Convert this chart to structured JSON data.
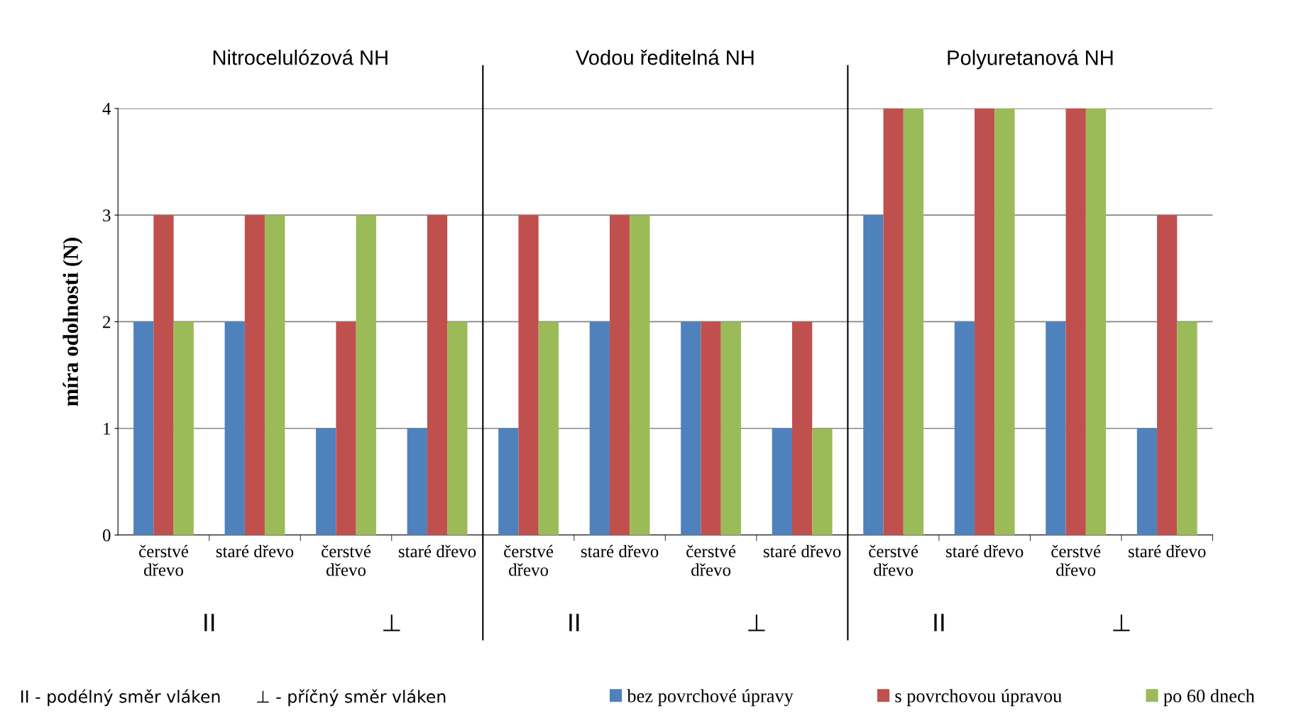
{
  "chart_data": {
    "type": "bar",
    "ylabel": "míra odolnosti (N)",
    "categories": [
      "čerstvé dřevo",
      "staré dřevo",
      "čerstvé dřevo",
      "staré dřevo",
      "čerstvé dřevo",
      "staré dřevo",
      "čerstvé dřevo",
      "staré dřevo",
      "čerstvé dřevo",
      "staré dřevo",
      "čerstvé dřevo",
      "staré dřevo"
    ],
    "series": [
      {
        "name": "bez povrchové úpravy",
        "color": "#4f81bd",
        "values": [
          2,
          2,
          1,
          1,
          1,
          2,
          2,
          1,
          3,
          2,
          2,
          1
        ]
      },
      {
        "name": "s povrchovou úpravou",
        "color": "#c0504d",
        "values": [
          3,
          3,
          2,
          3,
          3,
          3,
          2,
          2,
          4,
          4,
          4,
          3
        ]
      },
      {
        "name": "po 60 dnech",
        "color": "#9bbb59",
        "values": [
          2,
          3,
          3,
          2,
          2,
          3,
          2,
          1,
          4,
          4,
          4,
          2
        ]
      }
    ],
    "ylim": [
      0,
      4
    ],
    "yticks": [
      0,
      1,
      2,
      3,
      4
    ],
    "grid": "y",
    "legend": "bottom right",
    "annotations": [
      "Nitrocelulózová NH",
      "Vodou ředitelná NH",
      "Polyuretanová NH",
      "II",
      "⊥",
      "II",
      "⊥",
      "II",
      "⊥",
      "II - podélný směr vláken",
      "⊥ - příčný směr vláken"
    ]
  }
}
